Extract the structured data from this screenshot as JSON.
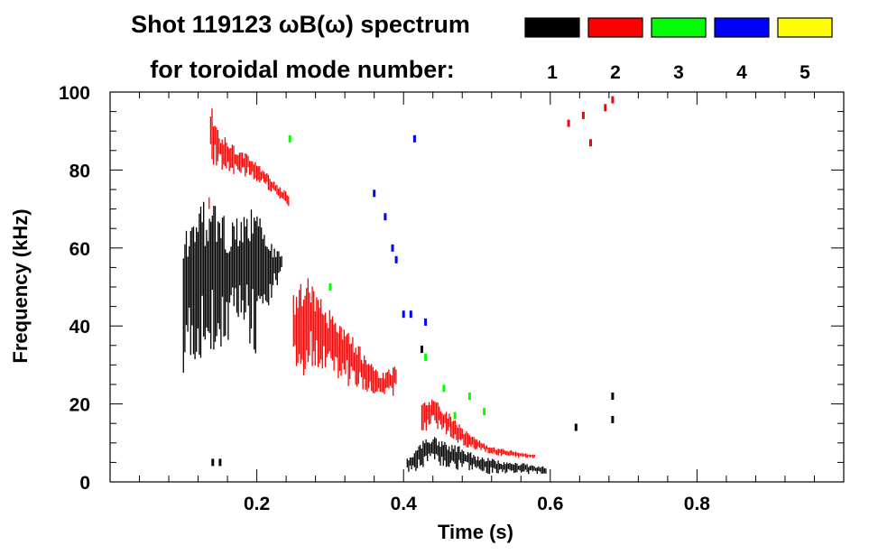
{
  "chart_data": {
    "type": "scatter",
    "title_line1": "Shot 119123 ωB(ω) spectrum",
    "title_line2": "for toroidal mode number:",
    "xlabel": "Time (s)",
    "ylabel": "Frequency (kHz)",
    "xlim": [
      0.0,
      1.0
    ],
    "ylim": [
      0,
      100
    ],
    "x_ticks": [
      0.2,
      0.4,
      0.6,
      0.8
    ],
    "x_tick_labels": [
      "0.2",
      "0.4",
      "0.6",
      "0.8"
    ],
    "y_ticks": [
      0,
      20,
      40,
      60,
      80,
      100
    ],
    "y_tick_labels": [
      "0",
      "20",
      "40",
      "60",
      "80",
      "100"
    ],
    "legend": [
      {
        "label": "1",
        "color": "#000000"
      },
      {
        "label": "2",
        "color": "#ff0000"
      },
      {
        "label": "3",
        "color": "#00ff00"
      },
      {
        "label": "4",
        "color": "#0000ff"
      },
      {
        "label": "5",
        "color": "#ffff00"
      }
    ],
    "series": [
      {
        "name": "1",
        "color": "#000000",
        "segments": [
          {
            "t": [
              0.1,
              0.12,
              0.14,
              0.16,
              0.18,
              0.2,
              0.22,
              0.235
            ],
            "f_low": [
              28,
              30,
              32,
              35,
              40,
              30,
              45,
              55
            ],
            "f_high": [
              66,
              72,
              72,
              68,
              68,
              72,
              62,
              58
            ]
          },
          {
            "t": [
              0.405,
              0.42,
              0.43,
              0.44,
              0.46,
              0.48,
              0.5,
              0.52,
              0.54,
              0.56,
              0.58,
              0.595
            ],
            "f_low": [
              2,
              3,
              4,
              4,
              3,
              3,
              2,
              2,
              2,
              2,
              2,
              2
            ],
            "f_high": [
              6,
              9,
              12,
              12,
              10,
              9,
              7,
              6,
              5,
              5,
              4,
              4
            ]
          }
        ],
        "points": [
          {
            "t": 0.14,
            "f": 5
          },
          {
            "t": 0.15,
            "f": 5
          },
          {
            "t": 0.425,
            "f": 34
          },
          {
            "t": 0.685,
            "f": 22
          },
          {
            "t": 0.685,
            "f": 16
          },
          {
            "t": 0.635,
            "f": 14
          }
        ]
      },
      {
        "name": "2",
        "color": "#ff0000",
        "segments": [
          {
            "t": [
              0.135,
              0.15,
              0.17,
              0.19,
              0.21,
              0.23,
              0.245
            ],
            "f_low": [
              82,
              80,
              78,
              78,
              76,
              72,
              70
            ],
            "f_high": [
              98,
              90,
              86,
              84,
              80,
              76,
              74
            ]
          },
          {
            "t": [
              0.25,
              0.27,
              0.29,
              0.31,
              0.33,
              0.35,
              0.37,
              0.39
            ],
            "f_low": [
              24,
              28,
              28,
              26,
              24,
              22,
              21,
              22
            ],
            "f_high": [
              48,
              54,
              46,
              42,
              38,
              32,
              28,
              30
            ]
          },
          {
            "t": [
              0.425,
              0.44,
              0.46,
              0.48,
              0.5,
              0.52,
              0.55,
              0.58
            ],
            "f_low": [
              12,
              14,
              12,
              9,
              8,
              7,
              6,
              6
            ],
            "f_high": [
              20,
              22,
              18,
              14,
              11,
              9,
              8,
              7
            ]
          }
        ],
        "points": [
          {
            "t": 0.625,
            "f": 92
          },
          {
            "t": 0.645,
            "f": 94
          },
          {
            "t": 0.655,
            "f": 87
          },
          {
            "t": 0.675,
            "f": 96
          },
          {
            "t": 0.685,
            "f": 98
          }
        ]
      },
      {
        "name": "3",
        "color": "#00ff00",
        "segments": [],
        "points": [
          {
            "t": 0.245,
            "f": 88
          },
          {
            "t": 0.3,
            "f": 50
          },
          {
            "t": 0.43,
            "f": 32
          },
          {
            "t": 0.455,
            "f": 24
          },
          {
            "t": 0.47,
            "f": 17
          },
          {
            "t": 0.49,
            "f": 22
          },
          {
            "t": 0.51,
            "f": 18
          }
        ]
      },
      {
        "name": "4",
        "color": "#0000ff",
        "segments": [],
        "points": [
          {
            "t": 0.36,
            "f": 74
          },
          {
            "t": 0.375,
            "f": 68
          },
          {
            "t": 0.385,
            "f": 60
          },
          {
            "t": 0.39,
            "f": 57
          },
          {
            "t": 0.4,
            "f": 43
          },
          {
            "t": 0.41,
            "f": 43
          },
          {
            "t": 0.415,
            "f": 88
          },
          {
            "t": 0.43,
            "f": 41
          }
        ]
      },
      {
        "name": "5",
        "color": "#ffff00",
        "segments": [],
        "points": []
      }
    ]
  }
}
